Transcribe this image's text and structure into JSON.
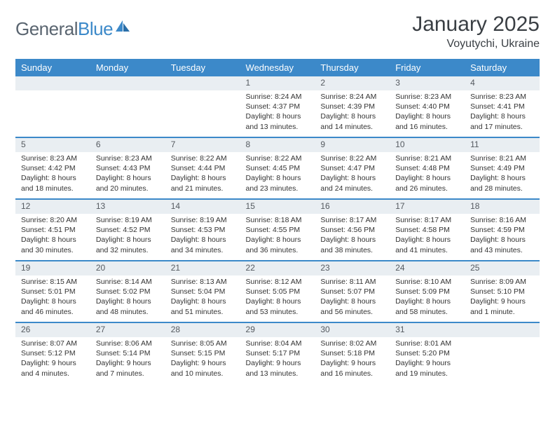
{
  "brand": {
    "name_a": "General",
    "name_b": "Blue"
  },
  "title": "January 2025",
  "subtitle": "Voyutychi, Ukraine",
  "colors": {
    "header_bg": "#3c89c9",
    "header_text": "#ffffff",
    "daynum_bg": "#e9eef2",
    "row_border": "#3c89c9",
    "text": "#333333",
    "brand_gray": "#5a6570",
    "brand_blue": "#3c89c9"
  },
  "weekdays": [
    "Sunday",
    "Monday",
    "Tuesday",
    "Wednesday",
    "Thursday",
    "Friday",
    "Saturday"
  ],
  "weeks": [
    [
      null,
      null,
      null,
      {
        "n": "1",
        "sunrise": "8:24 AM",
        "sunset": "4:37 PM",
        "daylight": "8 hours and 13 minutes."
      },
      {
        "n": "2",
        "sunrise": "8:24 AM",
        "sunset": "4:39 PM",
        "daylight": "8 hours and 14 minutes."
      },
      {
        "n": "3",
        "sunrise": "8:23 AM",
        "sunset": "4:40 PM",
        "daylight": "8 hours and 16 minutes."
      },
      {
        "n": "4",
        "sunrise": "8:23 AM",
        "sunset": "4:41 PM",
        "daylight": "8 hours and 17 minutes."
      }
    ],
    [
      {
        "n": "5",
        "sunrise": "8:23 AM",
        "sunset": "4:42 PM",
        "daylight": "8 hours and 18 minutes."
      },
      {
        "n": "6",
        "sunrise": "8:23 AM",
        "sunset": "4:43 PM",
        "daylight": "8 hours and 20 minutes."
      },
      {
        "n": "7",
        "sunrise": "8:22 AM",
        "sunset": "4:44 PM",
        "daylight": "8 hours and 21 minutes."
      },
      {
        "n": "8",
        "sunrise": "8:22 AM",
        "sunset": "4:45 PM",
        "daylight": "8 hours and 23 minutes."
      },
      {
        "n": "9",
        "sunrise": "8:22 AM",
        "sunset": "4:47 PM",
        "daylight": "8 hours and 24 minutes."
      },
      {
        "n": "10",
        "sunrise": "8:21 AM",
        "sunset": "4:48 PM",
        "daylight": "8 hours and 26 minutes."
      },
      {
        "n": "11",
        "sunrise": "8:21 AM",
        "sunset": "4:49 PM",
        "daylight": "8 hours and 28 minutes."
      }
    ],
    [
      {
        "n": "12",
        "sunrise": "8:20 AM",
        "sunset": "4:51 PM",
        "daylight": "8 hours and 30 minutes."
      },
      {
        "n": "13",
        "sunrise": "8:19 AM",
        "sunset": "4:52 PM",
        "daylight": "8 hours and 32 minutes."
      },
      {
        "n": "14",
        "sunrise": "8:19 AM",
        "sunset": "4:53 PM",
        "daylight": "8 hours and 34 minutes."
      },
      {
        "n": "15",
        "sunrise": "8:18 AM",
        "sunset": "4:55 PM",
        "daylight": "8 hours and 36 minutes."
      },
      {
        "n": "16",
        "sunrise": "8:17 AM",
        "sunset": "4:56 PM",
        "daylight": "8 hours and 38 minutes."
      },
      {
        "n": "17",
        "sunrise": "8:17 AM",
        "sunset": "4:58 PM",
        "daylight": "8 hours and 41 minutes."
      },
      {
        "n": "18",
        "sunrise": "8:16 AM",
        "sunset": "4:59 PM",
        "daylight": "8 hours and 43 minutes."
      }
    ],
    [
      {
        "n": "19",
        "sunrise": "8:15 AM",
        "sunset": "5:01 PM",
        "daylight": "8 hours and 46 minutes."
      },
      {
        "n": "20",
        "sunrise": "8:14 AM",
        "sunset": "5:02 PM",
        "daylight": "8 hours and 48 minutes."
      },
      {
        "n": "21",
        "sunrise": "8:13 AM",
        "sunset": "5:04 PM",
        "daylight": "8 hours and 51 minutes."
      },
      {
        "n": "22",
        "sunrise": "8:12 AM",
        "sunset": "5:05 PM",
        "daylight": "8 hours and 53 minutes."
      },
      {
        "n": "23",
        "sunrise": "8:11 AM",
        "sunset": "5:07 PM",
        "daylight": "8 hours and 56 minutes."
      },
      {
        "n": "24",
        "sunrise": "8:10 AM",
        "sunset": "5:09 PM",
        "daylight": "8 hours and 58 minutes."
      },
      {
        "n": "25",
        "sunrise": "8:09 AM",
        "sunset": "5:10 PM",
        "daylight": "9 hours and 1 minute."
      }
    ],
    [
      {
        "n": "26",
        "sunrise": "8:07 AM",
        "sunset": "5:12 PM",
        "daylight": "9 hours and 4 minutes."
      },
      {
        "n": "27",
        "sunrise": "8:06 AM",
        "sunset": "5:14 PM",
        "daylight": "9 hours and 7 minutes."
      },
      {
        "n": "28",
        "sunrise": "8:05 AM",
        "sunset": "5:15 PM",
        "daylight": "9 hours and 10 minutes."
      },
      {
        "n": "29",
        "sunrise": "8:04 AM",
        "sunset": "5:17 PM",
        "daylight": "9 hours and 13 minutes."
      },
      {
        "n": "30",
        "sunrise": "8:02 AM",
        "sunset": "5:18 PM",
        "daylight": "9 hours and 16 minutes."
      },
      {
        "n": "31",
        "sunrise": "8:01 AM",
        "sunset": "5:20 PM",
        "daylight": "9 hours and 19 minutes."
      },
      null
    ]
  ],
  "labels": {
    "sunrise": "Sunrise:",
    "sunset": "Sunset:",
    "daylight": "Daylight:"
  }
}
